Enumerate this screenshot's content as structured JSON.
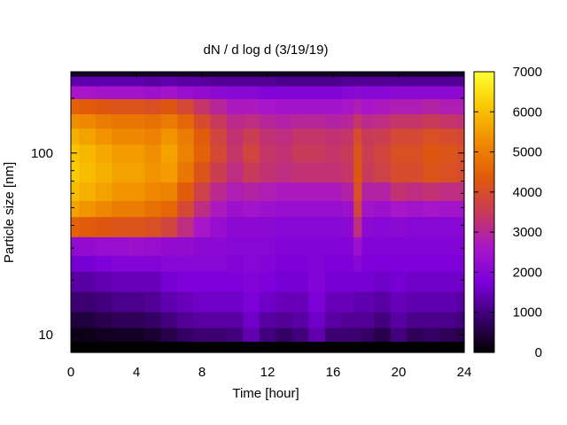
{
  "chart_data": {
    "type": "heatmap",
    "title": "dN / d log d (3/19/19)",
    "xlabel": "Time [hour]",
    "ylabel": "Particle size [nm]",
    "x_range": [
      0,
      24
    ],
    "x_ticks": [
      0,
      4,
      8,
      12,
      16,
      20,
      24
    ],
    "y_scale": "log",
    "y_range": [
      8,
      280
    ],
    "y_ticks": [
      10,
      100
    ],
    "colorbar": {
      "range": [
        0,
        7000
      ],
      "ticks": [
        0,
        1000,
        2000,
        3000,
        4000,
        5000,
        6000,
        7000
      ],
      "palette": [
        "#000000",
        "#3a006e",
        "#7a00d9",
        "#a817c8",
        "#c83a5a",
        "#e05a0a",
        "#f08a00",
        "#fac600",
        "#ffff33"
      ]
    },
    "grid": false,
    "times": [
      0,
      1,
      2,
      3,
      4,
      5,
      6,
      7,
      8,
      9,
      10,
      11,
      12,
      13,
      14,
      15,
      16,
      17,
      17.5,
      18,
      19,
      20,
      21,
      22,
      23,
      24
    ],
    "sizes_nm": [
      8.5,
      10,
      12,
      15,
      20,
      25,
      30,
      40,
      50,
      60,
      80,
      100,
      125,
      150,
      180,
      220,
      250,
      280
    ],
    "values": [
      [
        0,
        0,
        0,
        0,
        0,
        0,
        0,
        0,
        0,
        0,
        0,
        0,
        0,
        0,
        0,
        0,
        0,
        0,
        0,
        0,
        0,
        0,
        0,
        0,
        0,
        0
      ],
      [
        200,
        200,
        250,
        300,
        300,
        400,
        600,
        800,
        900,
        900,
        1000,
        1400,
        1000,
        800,
        1000,
        1400,
        900,
        900,
        900,
        800,
        600,
        1000,
        700,
        800,
        700,
        600
      ],
      [
        500,
        500,
        600,
        700,
        700,
        800,
        1000,
        1200,
        1300,
        1300,
        1300,
        1600,
        1300,
        1200,
        1300,
        1600,
        1300,
        1200,
        1200,
        1200,
        1000,
        1300,
        1100,
        1100,
        1100,
        1000
      ],
      [
        900,
        900,
        1000,
        1100,
        1100,
        1200,
        1400,
        1500,
        1600,
        1600,
        1600,
        1800,
        1600,
        1500,
        1500,
        1800,
        1500,
        1500,
        1400,
        1400,
        1300,
        1500,
        1400,
        1400,
        1400,
        1300
      ],
      [
        1300,
        1300,
        1400,
        1500,
        1500,
        1500,
        1700,
        1800,
        1800,
        1800,
        1800,
        1900,
        1800,
        1700,
        1700,
        1900,
        1700,
        1700,
        1700,
        1700,
        1600,
        1700,
        1600,
        1600,
        1600,
        1600
      ],
      [
        1700,
        1700,
        1800,
        1900,
        1900,
        1900,
        2000,
        2000,
        2000,
        2000,
        1900,
        2000,
        1900,
        1800,
        1800,
        1900,
        1800,
        1800,
        2000,
        1800,
        1800,
        1800,
        1800,
        1800,
        1800,
        1800
      ],
      [
        2200,
        2200,
        2300,
        2300,
        2400,
        2300,
        2200,
        2200,
        2100,
        2100,
        2000,
        2000,
        2000,
        1900,
        1900,
        1900,
        1900,
        1900,
        2400,
        1900,
        1900,
        1900,
        1900,
        1900,
        1900,
        1900
      ],
      [
        4500,
        4400,
        4300,
        4200,
        4200,
        4100,
        3800,
        3200,
        2600,
        2300,
        2100,
        2100,
        2100,
        2000,
        2000,
        2000,
        2000,
        2100,
        3200,
        2100,
        2000,
        2100,
        2000,
        2000,
        2000,
        2000
      ],
      [
        5600,
        5400,
        5200,
        5000,
        5000,
        4800,
        4600,
        3900,
        3200,
        2700,
        2400,
        2500,
        2400,
        2300,
        2300,
        2300,
        2300,
        2400,
        3800,
        2500,
        2400,
        2600,
        2500,
        2600,
        2500,
        2500
      ],
      [
        6000,
        5800,
        5600,
        5400,
        5400,
        5200,
        5100,
        4400,
        3700,
        3100,
        2800,
        2900,
        2800,
        2700,
        2700,
        2700,
        2700,
        2900,
        4100,
        2900,
        2900,
        3300,
        3200,
        3300,
        3200,
        3200
      ],
      [
        6200,
        6000,
        5800,
        5600,
        5600,
        5400,
        5500,
        4900,
        4200,
        3600,
        3200,
        3500,
        3300,
        3200,
        3300,
        3300,
        3300,
        3400,
        4300,
        3500,
        3700,
        4000,
        4000,
        4200,
        4100,
        4000
      ],
      [
        6100,
        5900,
        5700,
        5500,
        5500,
        5300,
        5600,
        5100,
        4500,
        3900,
        3400,
        3800,
        3400,
        3300,
        3500,
        3500,
        3400,
        3500,
        4200,
        3600,
        3800,
        4100,
        4100,
        4300,
        4200,
        4100
      ],
      [
        5800,
        5600,
        5400,
        5200,
        5200,
        5100,
        5400,
        5000,
        4400,
        3800,
        3300,
        3600,
        3300,
        3200,
        3400,
        3400,
        3300,
        3400,
        4000,
        3500,
        3600,
        3900,
        3900,
        4100,
        4000,
        3900
      ],
      [
        5300,
        5200,
        5000,
        4900,
        4900,
        4800,
        5000,
        4600,
        4000,
        3500,
        3100,
        3200,
        3000,
        2900,
        3000,
        3000,
        2900,
        3000,
        3400,
        3100,
        3200,
        3400,
        3400,
        3500,
        3400,
        3300
      ],
      [
        4500,
        4400,
        4300,
        4200,
        4200,
        4100,
        4300,
        3900,
        3400,
        3000,
        2700,
        2700,
        2600,
        2500,
        2500,
        2500,
        2500,
        2600,
        2800,
        2600,
        2700,
        2800,
        2800,
        2900,
        2800,
        2800
      ],
      [
        2600,
        2600,
        2500,
        2500,
        2500,
        2400,
        2500,
        2300,
        2200,
        2100,
        2000,
        2000,
        1900,
        1900,
        1900,
        1900,
        1900,
        2000,
        2100,
        2000,
        2000,
        2100,
        2100,
        2100,
        2100,
        2100
      ],
      [
        1400,
        1400,
        1400,
        1400,
        1400,
        1300,
        1400,
        1300,
        1300,
        1200,
        1200,
        1200,
        1200,
        1100,
        1100,
        1100,
        1100,
        1200,
        1200,
        1200,
        1200,
        1200,
        1200,
        1200,
        1200,
        1200
      ],
      [
        300,
        300,
        300,
        300,
        300,
        300,
        300,
        300,
        300,
        300,
        300,
        300,
        300,
        300,
        300,
        300,
        300,
        300,
        300,
        300,
        300,
        300,
        300,
        300,
        300,
        300
      ]
    ]
  }
}
